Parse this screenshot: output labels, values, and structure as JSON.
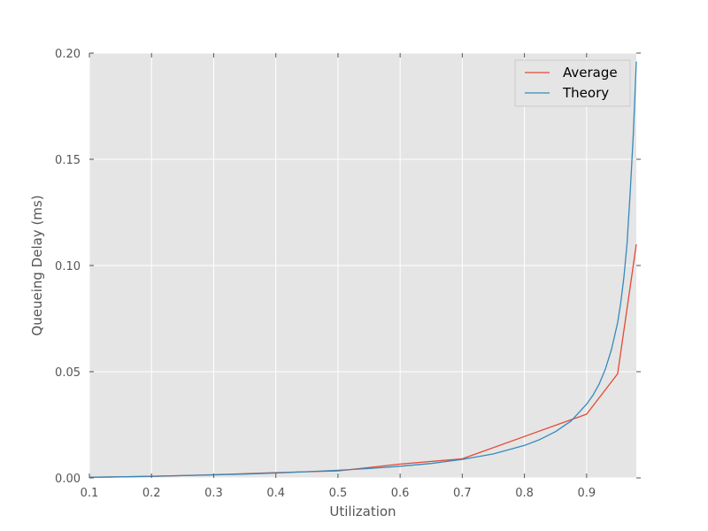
{
  "chart_data": {
    "type": "line",
    "xlabel": "Utilization",
    "ylabel": "Queueing Delay (ms)",
    "xlim": [
      0.1,
      0.98
    ],
    "ylim": [
      0.0,
      0.2
    ],
    "xticks": [
      "0.1",
      "0.2",
      "0.3",
      "0.4",
      "0.5",
      "0.6",
      "0.7",
      "0.8",
      "0.9"
    ],
    "yticks": [
      "0.00",
      "0.05",
      "0.10",
      "0.15",
      "0.20"
    ],
    "grid": true,
    "legend_position": "top-right",
    "series": [
      {
        "name": "Average",
        "color": "#E24A33",
        "x": [
          0.1,
          0.2,
          0.3,
          0.4,
          0.5,
          0.6,
          0.7,
          0.8,
          0.9,
          0.95,
          0.98
        ],
        "y": [
          0.0003,
          0.0007,
          0.0015,
          0.0025,
          0.0033,
          0.0065,
          0.009,
          0.0195,
          0.03,
          0.049,
          0.11
        ]
      },
      {
        "name": "Theory",
        "color": "#348ABD",
        "x": [
          0.1,
          0.15,
          0.2,
          0.25,
          0.3,
          0.35,
          0.4,
          0.45,
          0.5,
          0.55,
          0.6,
          0.65,
          0.7,
          0.75,
          0.8,
          0.825,
          0.85,
          0.875,
          0.9,
          0.91,
          0.92,
          0.93,
          0.94,
          0.95,
          0.955,
          0.96,
          0.965,
          0.97,
          0.975,
          0.98
        ],
        "y": [
          0.0003,
          0.0005,
          0.0008,
          0.0011,
          0.0014,
          0.0018,
          0.0023,
          0.0029,
          0.0036,
          0.0044,
          0.0055,
          0.0068,
          0.0087,
          0.0113,
          0.0153,
          0.0181,
          0.0218,
          0.0268,
          0.0347,
          0.0388,
          0.0441,
          0.0511,
          0.0604,
          0.0731,
          0.0824,
          0.0946,
          0.1102,
          0.1337,
          0.1609,
          0.196
        ]
      }
    ]
  }
}
